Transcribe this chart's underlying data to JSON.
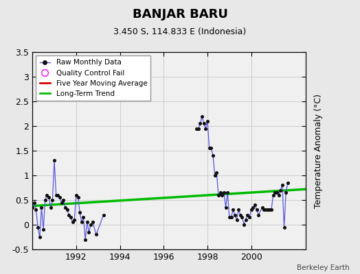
{
  "title": "BANJAR BARU",
  "subtitle": "3.450 S, 114.833 E (Indonesia)",
  "ylabel": "Temperature Anomaly (°C)",
  "credit": "Berkeley Earth",
  "ylim": [
    -0.5,
    3.5
  ],
  "xlim": [
    1990.0,
    2002.5
  ],
  "bg_color": "#e8e8e8",
  "plot_bg_color": "#f0f0f0",
  "segment1_x": [
    1990.0,
    1990.083,
    1990.167,
    1990.25,
    1990.333,
    1990.417,
    1990.5,
    1990.583,
    1990.667,
    1990.75,
    1990.833,
    1990.917,
    1991.0,
    1991.083,
    1991.167,
    1991.25,
    1991.333,
    1991.417,
    1991.5,
    1991.583,
    1991.667,
    1991.75,
    1991.833,
    1991.917,
    1992.0,
    1992.083,
    1992.167,
    1992.25,
    1992.333,
    1992.417,
    1992.5,
    1992.583,
    1992.667,
    1992.75,
    1992.917,
    1993.25
  ],
  "segment1_y": [
    0.35,
    0.45,
    0.3,
    -0.05,
    -0.25,
    0.35,
    -0.1,
    0.5,
    0.6,
    0.55,
    0.35,
    0.5,
    1.3,
    0.6,
    0.6,
    0.55,
    0.45,
    0.5,
    0.35,
    0.3,
    0.2,
    0.15,
    0.05,
    0.1,
    0.6,
    0.55,
    0.25,
    0.05,
    0.15,
    -0.3,
    0.05,
    -0.15,
    0.0,
    0.05,
    -0.2,
    0.2
  ],
  "segment2_x": [
    1997.5,
    1997.583,
    1997.667,
    1997.75,
    1997.833,
    1997.917,
    1998.0,
    1998.083,
    1998.167,
    1998.25,
    1998.333,
    1998.417,
    1998.5,
    1998.583,
    1998.667,
    1998.75,
    1998.833,
    1998.917,
    1999.0,
    1999.083,
    1999.167,
    1999.25,
    1999.333,
    1999.417,
    1999.5,
    1999.583,
    1999.667,
    1999.75,
    1999.833,
    1999.917,
    2000.0,
    2000.083,
    2000.167,
    2000.25,
    2000.333,
    2000.5,
    2000.583,
    2000.667,
    2000.75,
    2000.833,
    2000.917,
    2001.0,
    2001.083,
    2001.167,
    2001.25,
    2001.333,
    2001.417,
    2001.5,
    2001.583,
    2001.667
  ],
  "segment2_y": [
    1.95,
    1.95,
    2.05,
    2.2,
    2.05,
    1.95,
    2.1,
    1.55,
    1.55,
    1.4,
    1.0,
    1.05,
    0.6,
    0.65,
    0.6,
    0.65,
    0.35,
    0.65,
    0.15,
    0.15,
    0.3,
    0.2,
    0.1,
    0.3,
    0.2,
    0.15,
    0.0,
    0.1,
    0.2,
    0.15,
    0.3,
    0.35,
    0.4,
    0.3,
    0.2,
    0.35,
    0.3,
    0.3,
    0.3,
    0.3,
    0.3,
    0.6,
    0.65,
    0.65,
    0.6,
    0.7,
    0.8,
    -0.05,
    0.65,
    0.85
  ],
  "trend_x": [
    1990.0,
    2002.5
  ],
  "trend_y": [
    0.38,
    0.72
  ],
  "raw_line_color": "#5555dd",
  "raw_marker_color": "#111111",
  "trend_color": "#00bb00",
  "moving_avg_color": "#dd0000",
  "qc_color": "#ff00ff",
  "xticks": [
    1992,
    1994,
    1996,
    1998,
    2000
  ],
  "yticks": [
    -0.5,
    0.0,
    0.5,
    1.0,
    1.5,
    2.0,
    2.5,
    3.0,
    3.5
  ],
  "grid_color": "#cccccc"
}
